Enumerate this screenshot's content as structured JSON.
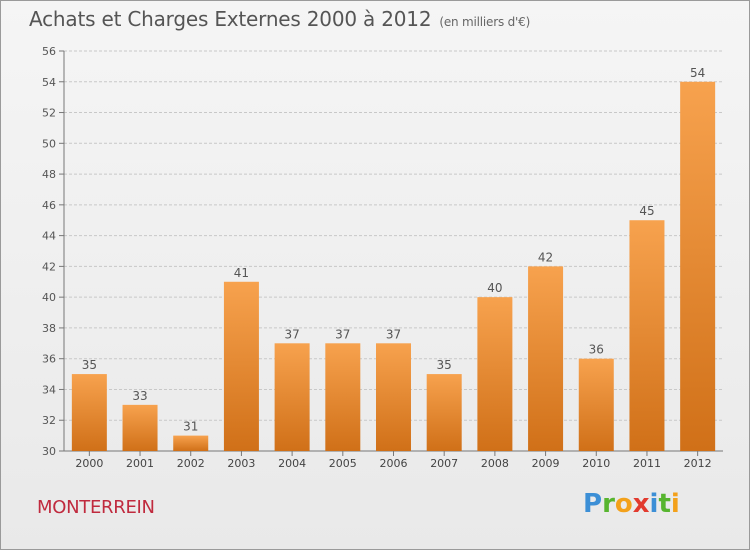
{
  "chart_data": {
    "type": "bar",
    "title": "Achats et Charges Externes 2000 à 2012",
    "subtitle": "(en milliers d'€)",
    "categories": [
      "2000",
      "2001",
      "2002",
      "2003",
      "2004",
      "2005",
      "2006",
      "2007",
      "2008",
      "2009",
      "2010",
      "2011",
      "2012"
    ],
    "values": [
      35,
      33,
      31,
      41,
      37,
      37,
      37,
      35,
      40,
      42,
      36,
      45,
      54
    ],
    "ylim": [
      30,
      56
    ],
    "yticks": [
      30,
      32,
      34,
      36,
      38,
      40,
      42,
      44,
      46,
      48,
      50,
      52,
      54,
      56
    ],
    "grid": true,
    "bar_color_top": "#f7a24e",
    "bar_color_bottom": "#d07018",
    "grid_color": "#c8c8c8"
  },
  "footer": {
    "town": "MONTERREIN",
    "brand_letters": [
      {
        "ch": "P",
        "color": "#3c8fd6"
      },
      {
        "ch": "r",
        "color": "#57b52f"
      },
      {
        "ch": "o",
        "color": "#f3a11b"
      },
      {
        "ch": "x",
        "color": "#e23a2e"
      },
      {
        "ch": "i",
        "color": "#3c8fd6"
      },
      {
        "ch": "t",
        "color": "#57b52f"
      },
      {
        "ch": "i",
        "color": "#f3a11b"
      }
    ]
  }
}
